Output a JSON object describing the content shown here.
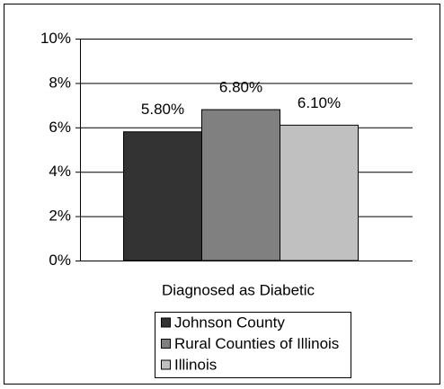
{
  "chart_data": {
    "type": "bar",
    "categories": [
      "Diagnosed as Diabetic"
    ],
    "series": [
      {
        "name": "Johnson County",
        "color": "#333333",
        "values": [
          5.8
        ],
        "value_labels": [
          "5.80%"
        ]
      },
      {
        "name": "Rural Counties of Illinois",
        "color": "#808080",
        "values": [
          6.8
        ],
        "value_labels": [
          "6.80%"
        ]
      },
      {
        "name": "Illinois",
        "color": "#c0c0c0",
        "values": [
          6.1
        ],
        "value_labels": [
          "6.10%"
        ]
      }
    ],
    "ylim": [
      0,
      10
    ],
    "yticks": [
      {
        "value": 0,
        "label": "0%"
      },
      {
        "value": 2,
        "label": "2%"
      },
      {
        "value": 4,
        "label": "4%"
      },
      {
        "value": 6,
        "label": "6%"
      },
      {
        "value": 8,
        "label": "8%"
      },
      {
        "value": 10,
        "label": "10%"
      }
    ],
    "grid": true,
    "legend": "bottom"
  }
}
